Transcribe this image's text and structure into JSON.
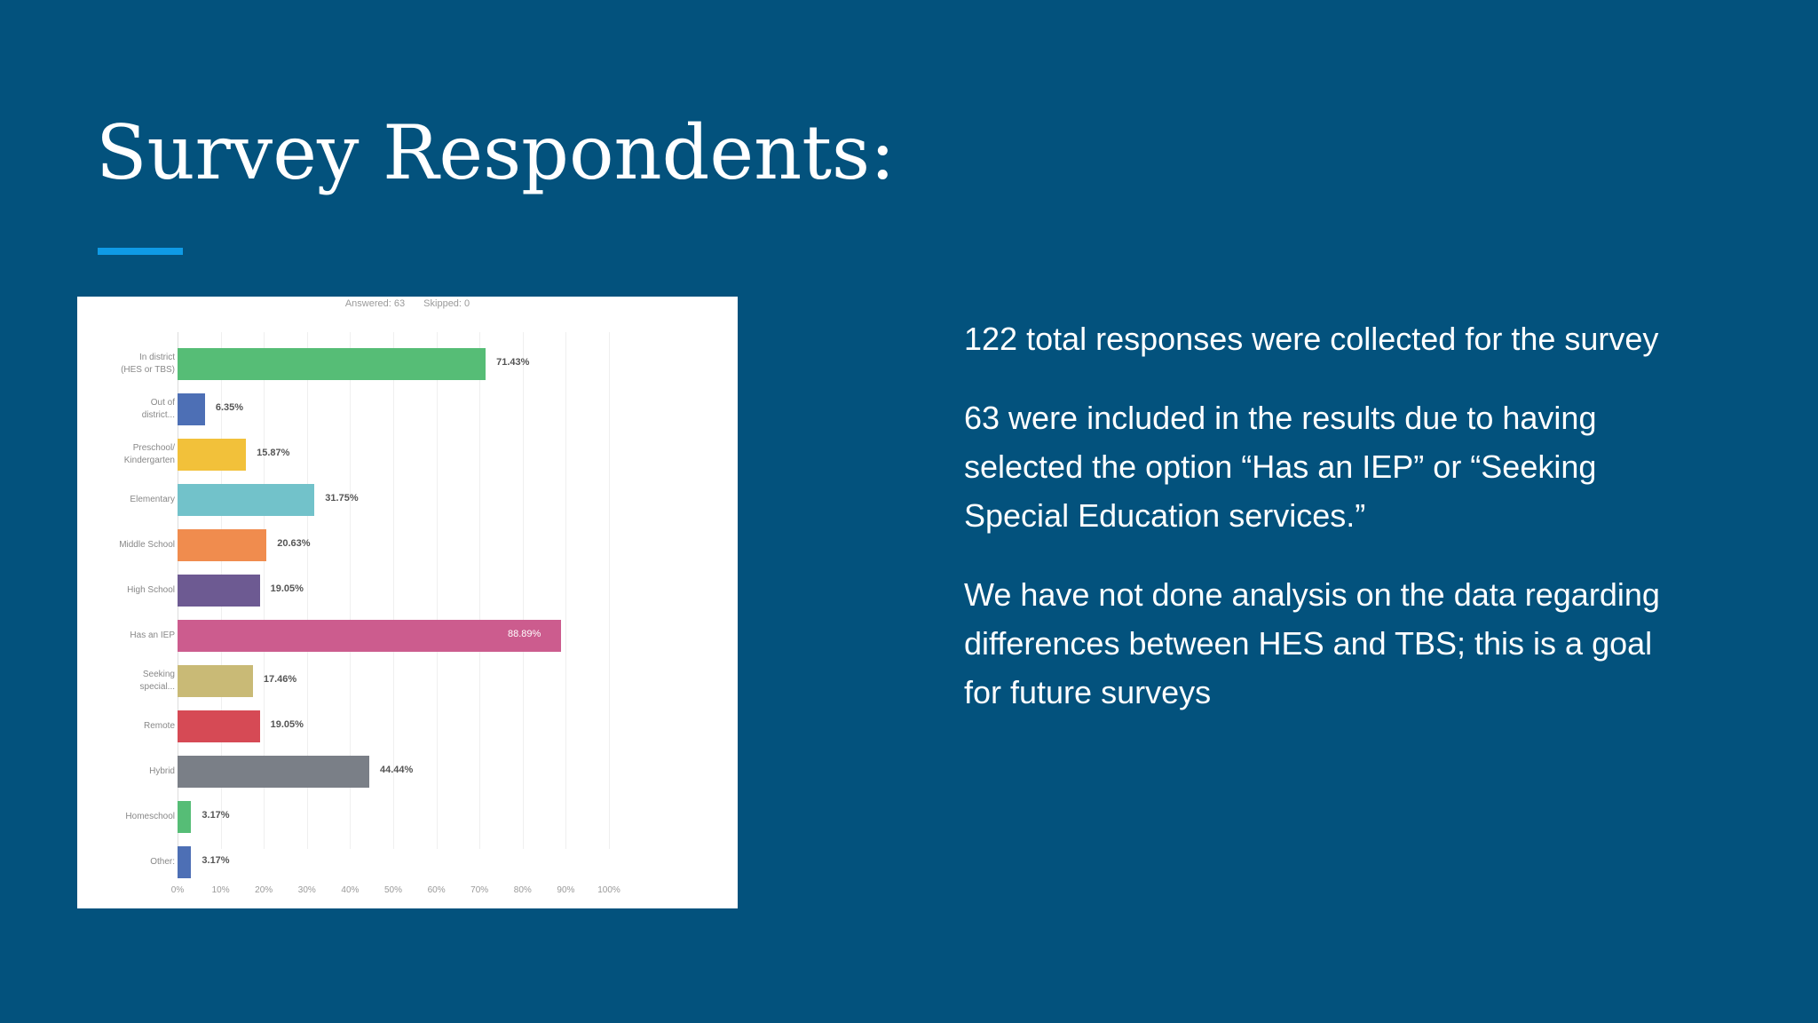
{
  "slide": {
    "title": "Survey Respondents:",
    "colors": {
      "background": "#03527d",
      "accent": "#0f9be6",
      "text": "#ffffff"
    },
    "paragraphs": [
      "122 total responses were collected for the survey",
      "63 were included in the results due to having selected the option “Has an IEP” or “Seeking Special Education services.”",
      "We have not done analysis on the data regarding differences between HES and TBS; this is a goal for future surveys"
    ]
  },
  "chart": {
    "answered_label": "Answered: 63",
    "skipped_label": "Skipped: 0",
    "x_ticks": [
      "0%",
      "10%",
      "20%",
      "30%",
      "40%",
      "50%",
      "60%",
      "70%",
      "80%",
      "90%",
      "100%"
    ],
    "bars": [
      {
        "label_line1": "In district",
        "label_line2": "(HES or TBS)",
        "value": 71.43,
        "display": "71.43%",
        "color": "#56bd76"
      },
      {
        "label_line1": "Out of",
        "label_line2": "district...",
        "value": 6.35,
        "display": "6.35%",
        "color": "#4d6fb5"
      },
      {
        "label_line1": "Preschool/",
        "label_line2": "Kindergarten",
        "value": 15.87,
        "display": "15.87%",
        "color": "#f2c13a"
      },
      {
        "label_line1": "Elementary",
        "label_line2": "",
        "value": 31.75,
        "display": "31.75%",
        "color": "#72c2ca"
      },
      {
        "label_line1": "Middle School",
        "label_line2": "",
        "value": 20.63,
        "display": "20.63%",
        "color": "#f08c4e"
      },
      {
        "label_line1": "High School",
        "label_line2": "",
        "value": 19.05,
        "display": "19.05%",
        "color": "#6d5a92"
      },
      {
        "label_line1": "Has an IEP",
        "label_line2": "",
        "value": 88.89,
        "display": "88.89%",
        "color": "#cc5c8e",
        "label_inside": true
      },
      {
        "label_line1": "Seeking",
        "label_line2": "special...",
        "value": 17.46,
        "display": "17.46%",
        "color": "#c9ba76"
      },
      {
        "label_line1": "Remote",
        "label_line2": "",
        "value": 19.05,
        "display": "19.05%",
        "color": "#d64a55"
      },
      {
        "label_line1": "Hybrid",
        "label_line2": "",
        "value": 44.44,
        "display": "44.44%",
        "color": "#7a7f87"
      },
      {
        "label_line1": "Homeschool",
        "label_line2": "",
        "value": 3.17,
        "display": "3.17%",
        "color": "#56bd76"
      },
      {
        "label_line1": "Other:",
        "label_line2": "",
        "value": 3.17,
        "display": "3.17%",
        "color": "#4d6fb5"
      }
    ]
  },
  "chart_data": {
    "type": "bar",
    "orientation": "horizontal",
    "title": "",
    "subtitle": "Answered: 63    Skipped: 0",
    "xlabel": "",
    "ylabel": "",
    "xlim": [
      0,
      100
    ],
    "grid": true,
    "legend": "none",
    "categories": [
      "In district (HES or TBS)",
      "Out of district...",
      "Preschool/ Kindergarten",
      "Elementary",
      "Middle School",
      "High School",
      "Has an IEP",
      "Seeking special...",
      "Remote",
      "Hybrid",
      "Homeschool",
      "Other:"
    ],
    "values": [
      71.43,
      6.35,
      15.87,
      31.75,
      20.63,
      19.05,
      88.89,
      17.46,
      19.05,
      44.44,
      3.17,
      3.17
    ],
    "tick_labels": [
      "0%",
      "10%",
      "20%",
      "30%",
      "40%",
      "50%",
      "60%",
      "70%",
      "80%",
      "90%",
      "100%"
    ],
    "colors": [
      "#56bd76",
      "#4d6fb5",
      "#f2c13a",
      "#72c2ca",
      "#f08c4e",
      "#6d5a92",
      "#cc5c8e",
      "#c9ba76",
      "#d64a55",
      "#7a7f87",
      "#56bd76",
      "#4d6fb5"
    ]
  }
}
